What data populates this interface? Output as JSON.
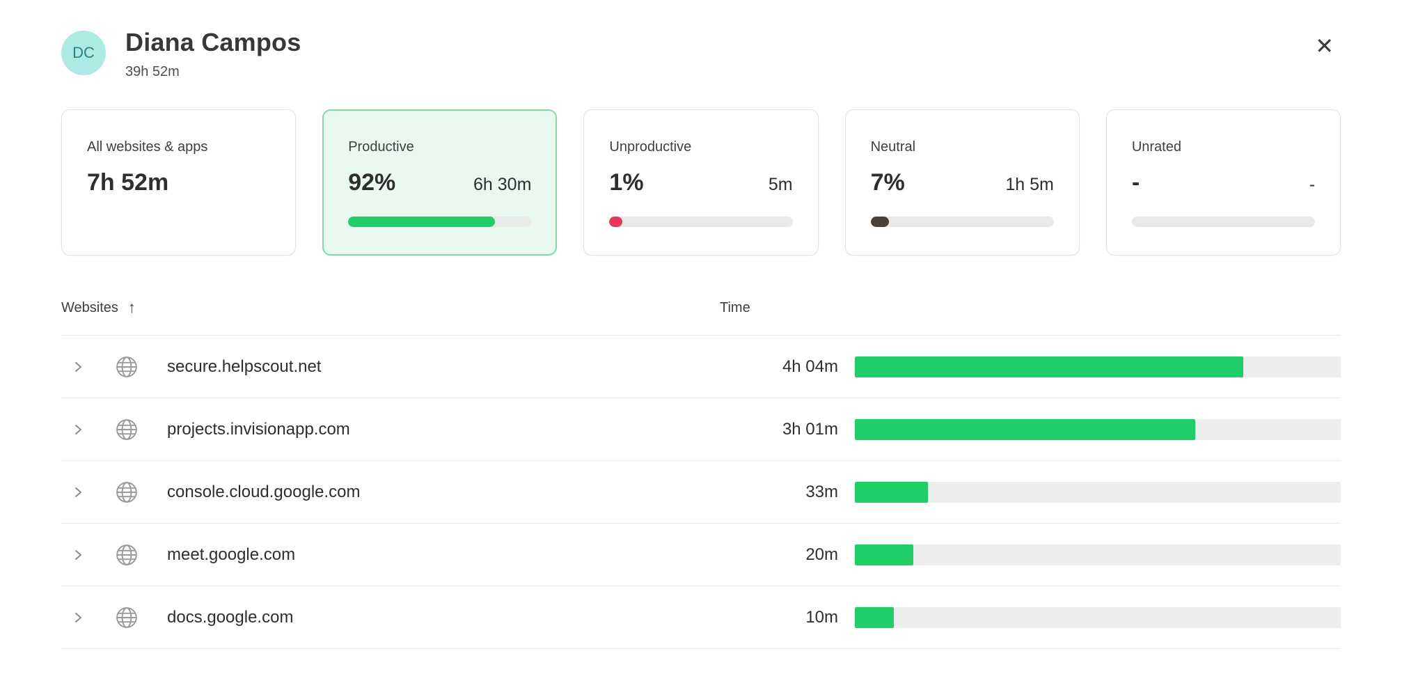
{
  "header": {
    "avatar_initials": "DC",
    "name": "Diana Campos",
    "subtitle": "39h 52m"
  },
  "icons": {
    "close": "✕",
    "sort_ascending": "↑"
  },
  "colors": {
    "productive_green": "#1ece66",
    "unproductive_red": "#e8395a",
    "neutral_dark": "#4a4139",
    "unrated_gray": "#e4e4e4",
    "track_gray": "#ededed",
    "selected_card_bg": "#e9f9ef",
    "selected_card_border": "#7edca6",
    "avatar_bg": "#aeeae4",
    "avatar_text": "#2b837c"
  },
  "cards": [
    {
      "label": "All websites & apps",
      "value": "7h 52m"
    },
    {
      "label": "Productive",
      "percent": "92%",
      "time": "6h 30m",
      "bar_percent": 80,
      "bar_color": "#1ece66",
      "selected": true
    },
    {
      "label": "Unproductive",
      "percent": "1%",
      "time": "5m",
      "bar_percent": 7,
      "bar_color": "#e8395a",
      "selected": false
    },
    {
      "label": "Neutral",
      "percent": "7%",
      "time": "1h 5m",
      "bar_percent": 10,
      "bar_color": "#4a4139",
      "selected": false
    },
    {
      "label": "Unrated",
      "percent": "-",
      "time": "-",
      "bar_percent": 0,
      "bar_color": "#e4e4e4",
      "selected": false
    }
  ],
  "table": {
    "columns": {
      "websites": "Websites",
      "time": "Time"
    },
    "rows": [
      {
        "domain": "secure.helpscout.net",
        "time": "4h 04m",
        "bar_percent": 80
      },
      {
        "domain": "projects.invisionapp.com",
        "time": "3h 01m",
        "bar_percent": 70
      },
      {
        "domain": "console.cloud.google.com",
        "time": "33m",
        "bar_percent": 15
      },
      {
        "domain": "meet.google.com",
        "time": "20m",
        "bar_percent": 12
      },
      {
        "domain": "docs.google.com",
        "time": "10m",
        "bar_percent": 8
      }
    ]
  }
}
